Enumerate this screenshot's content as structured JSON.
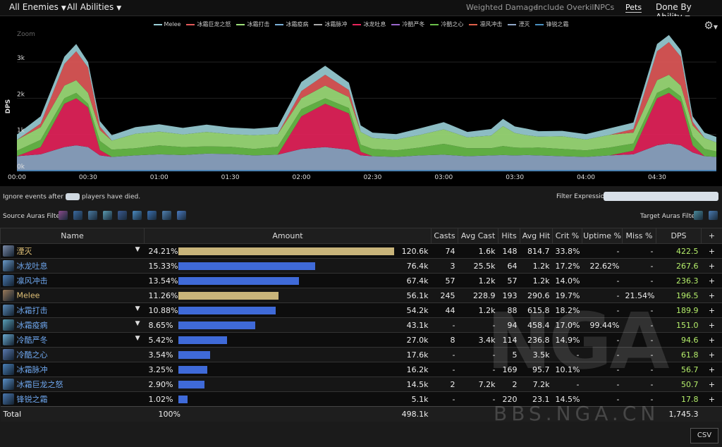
{
  "topbar": {
    "enemies": "All Enemies",
    "abilities": "All Abilities",
    "options": [
      "Weighted Damage",
      "Include Overkill",
      "NPCs",
      "Pets"
    ],
    "active_option": "Pets",
    "done_by": "Done By Ability"
  },
  "chart": {
    "zoom_label": "Zoom",
    "ylabel": "DPS",
    "legend": [
      {
        "name": "Melee",
        "color": "#9bd0d8"
      },
      {
        "name": "冰霜巨龙之怒",
        "color": "#e35a5a"
      },
      {
        "name": "冰霜打击",
        "color": "#9ee07a"
      },
      {
        "name": "冰霜疫病",
        "color": "#7ab0d8"
      },
      {
        "name": "冰霜脉冲",
        "color": "#aaaaaa"
      },
      {
        "name": "冰龙吐息",
        "color": "#e8245c"
      },
      {
        "name": "冷酷严冬",
        "color": "#9966cc"
      },
      {
        "name": "冷酷之心",
        "color": "#6ac04a"
      },
      {
        "name": "凛风冲击",
        "color": "#e0604a"
      },
      {
        "name": "湮灭",
        "color": "#90a8c8"
      },
      {
        "name": "锋锐之霜",
        "color": "#4a90c0"
      }
    ]
  },
  "chart_data": {
    "type": "area",
    "title": "",
    "xlabel": "",
    "ylabel": "DPS",
    "x_ticks": [
      "00:00",
      "00:30",
      "01:00",
      "01:30",
      "02:00",
      "02:30",
      "03:00",
      "03:30",
      "04:00",
      "04:30"
    ],
    "y_ticks": [
      "0k",
      "1k",
      "2k",
      "3k"
    ],
    "xlim": [
      0,
      295
    ],
    "ylim": [
      0,
      3800
    ],
    "x": [
      0,
      10,
      20,
      25,
      30,
      35,
      40,
      50,
      60,
      70,
      80,
      90,
      100,
      110,
      120,
      130,
      140,
      145,
      150,
      160,
      170,
      180,
      190,
      200,
      205,
      210,
      215,
      220,
      230,
      240,
      250,
      260,
      270,
      275,
      280,
      285,
      290,
      295
    ],
    "series": [
      {
        "name": "湮灭",
        "values": [
          400,
          450,
          650,
          700,
          650,
          420,
          380,
          420,
          450,
          430,
          470,
          460,
          420,
          440,
          600,
          650,
          580,
          420,
          400,
          380,
          420,
          440,
          400,
          420,
          430,
          420,
          430,
          420,
          400,
          380,
          420,
          450,
          700,
          750,
          700,
          500,
          400,
          380
        ]
      },
      {
        "name": "冰龙吐息",
        "values": [
          0,
          200,
          1200,
          1300,
          1100,
          150,
          0,
          0,
          0,
          0,
          0,
          0,
          0,
          0,
          900,
          1200,
          1000,
          100,
          0,
          0,
          0,
          0,
          0,
          0,
          0,
          0,
          0,
          0,
          0,
          0,
          0,
          100,
          1300,
          1400,
          1200,
          200,
          0,
          0
        ]
      },
      {
        "name": "冷酷之心",
        "values": [
          150,
          200,
          150,
          150,
          100,
          250,
          200,
          200,
          250,
          220,
          200,
          200,
          180,
          220,
          200,
          150,
          150,
          200,
          200,
          180,
          220,
          300,
          220,
          200,
          250,
          220,
          200,
          220,
          200,
          180,
          220,
          200,
          150,
          150,
          150,
          250,
          200,
          150
        ]
      },
      {
        "name": "冰霜打击",
        "values": [
          300,
          350,
          350,
          350,
          300,
          300,
          250,
          400,
          380,
          350,
          400,
          350,
          380,
          350,
          300,
          350,
          300,
          350,
          300,
          300,
          350,
          400,
          300,
          350,
          550,
          400,
          350,
          300,
          350,
          300,
          350,
          300,
          350,
          350,
          300,
          300,
          300,
          250
        ]
      },
      {
        "name": "冰霜巨龙之怒",
        "values": [
          0,
          100,
          600,
          800,
          700,
          100,
          0,
          0,
          0,
          0,
          0,
          0,
          0,
          0,
          200,
          300,
          200,
          0,
          0,
          0,
          0,
          0,
          0,
          0,
          0,
          0,
          0,
          0,
          0,
          0,
          0,
          100,
          800,
          900,
          800,
          100,
          0,
          0
        ]
      },
      {
        "name": "Melee",
        "values": [
          150,
          200,
          200,
          200,
          150,
          150,
          150,
          180,
          200,
          180,
          200,
          180,
          180,
          200,
          250,
          250,
          200,
          180,
          150,
          150,
          180,
          200,
          150,
          180,
          200,
          180,
          180,
          150,
          150,
          150,
          180,
          180,
          200,
          200,
          180,
          150,
          150,
          150
        ]
      }
    ]
  },
  "midbar": {
    "ignore_prefix": "Ignore events after",
    "ignore_suffix": "players have died.",
    "filter_label": "Filter Expression:",
    "source_auras": "Source Auras Filter:",
    "target_auras": "Target Auras Filter:",
    "source_icons": [
      "#8a4a8a",
      "#3a6aa0",
      "#4a7aa0",
      "#5a9ab0",
      "#3a5a90",
      "#4a8ac0",
      "#3a70b0",
      "#5080b0",
      "#4a7ac0"
    ],
    "target_icons": [
      "#4a8a9a",
      "#4a7ab0"
    ]
  },
  "table": {
    "headers": [
      "Name",
      "Amount",
      "Casts",
      "Avg Cast",
      "Hits",
      "Avg Hit",
      "Crit %",
      "Uptime %",
      "Miss %",
      "DPS",
      "+"
    ],
    "rows": [
      {
        "name": "湮灭",
        "gold": true,
        "arrow": true,
        "icon": "#7a8aa8",
        "pct": "24.21%",
        "frac": 1.0,
        "bar": "#c8b47a",
        "amount": "120.6k",
        "casts": "74",
        "avg_cast": "1.6k",
        "hits": "148",
        "avg_hit": "814.7",
        "crit": "33.8%",
        "uptime": "-",
        "miss": "-",
        "dps": "422.5"
      },
      {
        "name": "冰龙吐息",
        "gold": false,
        "arrow": false,
        "icon": "#6a9ac8",
        "pct": "15.33%",
        "frac": 0.635,
        "bar": "#3f6ad8",
        "amount": "76.4k",
        "casts": "3",
        "avg_cast": "25.5k",
        "hits": "64",
        "avg_hit": "1.2k",
        "crit": "17.2%",
        "uptime": "22.62%",
        "miss": "-",
        "dps": "267.6"
      },
      {
        "name": "凛风冲击",
        "gold": false,
        "arrow": false,
        "icon": "#4a7ab0",
        "pct": "13.54%",
        "frac": 0.56,
        "bar": "#3f6ad8",
        "amount": "67.4k",
        "casts": "57",
        "avg_cast": "1.2k",
        "hits": "57",
        "avg_hit": "1.2k",
        "crit": "14.0%",
        "uptime": "-",
        "miss": "-",
        "dps": "236.3"
      },
      {
        "name": "Melee",
        "gold": true,
        "arrow": false,
        "icon": "#9a7a5a",
        "pct": "11.26%",
        "frac": 0.465,
        "bar": "#c8b47a",
        "amount": "56.1k",
        "casts": "245",
        "avg_cast": "228.9",
        "hits": "193",
        "avg_hit": "290.6",
        "crit": "19.7%",
        "uptime": "-",
        "miss": "21.54%",
        "dps": "196.5"
      },
      {
        "name": "冰霜打击",
        "gold": false,
        "arrow": true,
        "icon": "#5a8ab8",
        "pct": "10.88%",
        "frac": 0.45,
        "bar": "#3f6ad8",
        "amount": "54.2k",
        "casts": "44",
        "avg_cast": "1.2k",
        "hits": "88",
        "avg_hit": "615.8",
        "crit": "18.2%",
        "uptime": "-",
        "miss": "-",
        "dps": "189.9"
      },
      {
        "name": "冰霜疫病",
        "gold": false,
        "arrow": true,
        "icon": "#5aa0b8",
        "pct": "8.65%",
        "frac": 0.357,
        "bar": "#3f6ad8",
        "amount": "43.1k",
        "casts": "-",
        "avg_cast": "-",
        "hits": "94",
        "avg_hit": "458.4",
        "crit": "17.0%",
        "uptime": "99.44%",
        "miss": "-",
        "dps": "151.0"
      },
      {
        "name": "冷酷严冬",
        "gold": false,
        "arrow": true,
        "icon": "#6aaad0",
        "pct": "5.42%",
        "frac": 0.225,
        "bar": "#3f6ad8",
        "amount": "27.0k",
        "casts": "8",
        "avg_cast": "3.4k",
        "hits": "114",
        "avg_hit": "236.8",
        "crit": "14.9%",
        "uptime": "-",
        "miss": "-",
        "dps": "94.6"
      },
      {
        "name": "冷酷之心",
        "gold": false,
        "arrow": false,
        "icon": "#5a7ab0",
        "pct": "3.54%",
        "frac": 0.146,
        "bar": "#3f6ad8",
        "amount": "17.6k",
        "casts": "-",
        "avg_cast": "-",
        "hits": "5",
        "avg_hit": "3.5k",
        "crit": "-",
        "uptime": "-",
        "miss": "-",
        "dps": "61.8"
      },
      {
        "name": "冰霜脉冲",
        "gold": false,
        "arrow": false,
        "icon": "#4a80b8",
        "pct": "3.25%",
        "frac": 0.134,
        "bar": "#3f6ad8",
        "amount": "16.2k",
        "casts": "-",
        "avg_cast": "-",
        "hits": "169",
        "avg_hit": "95.7",
        "crit": "10.1%",
        "uptime": "-",
        "miss": "-",
        "dps": "56.7"
      },
      {
        "name": "冰霜巨龙之怒",
        "gold": false,
        "arrow": false,
        "icon": "#5a90c8",
        "pct": "2.90%",
        "frac": 0.12,
        "bar": "#3f6ad8",
        "amount": "14.5k",
        "casts": "2",
        "avg_cast": "7.2k",
        "hits": "2",
        "avg_hit": "7.2k",
        "crit": "-",
        "uptime": "-",
        "miss": "-",
        "dps": "50.7"
      },
      {
        "name": "锋锐之霜",
        "gold": false,
        "arrow": false,
        "icon": "#4a78b0",
        "pct": "1.02%",
        "frac": 0.042,
        "bar": "#3f6ad8",
        "amount": "5.1k",
        "casts": "-",
        "avg_cast": "-",
        "hits": "220",
        "avg_hit": "23.1",
        "crit": "14.5%",
        "uptime": "-",
        "miss": "-",
        "dps": "17.8"
      }
    ],
    "total": {
      "label": "Total",
      "pct": "100%",
      "amount": "498.1k",
      "dps": "1,745.3"
    }
  },
  "csv_label": "CSV",
  "watermark": {
    "big": "NGA",
    "url": "BBS.NGA.CN"
  }
}
